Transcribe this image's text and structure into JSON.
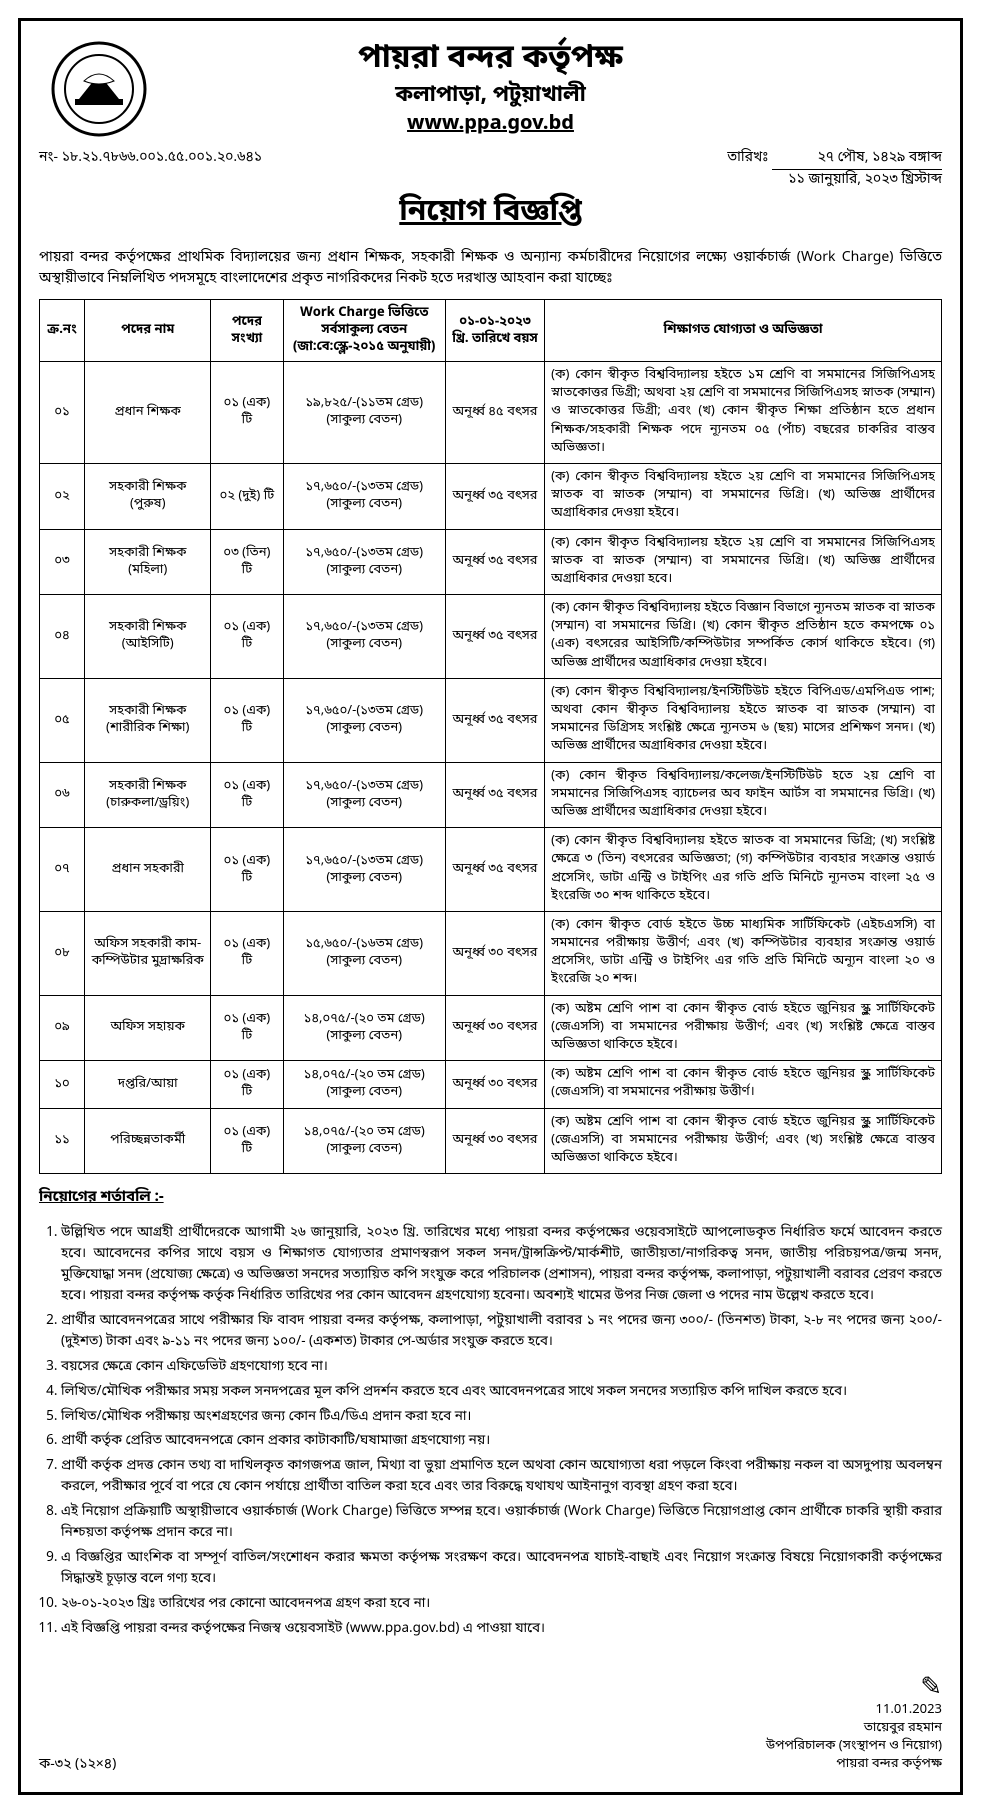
{
  "header": {
    "org_name": "পায়রা বন্দর কর্তৃপক্ষ",
    "org_address": "কলাপাড়া, পটুয়াখালী",
    "website": "www.ppa.gov.bd",
    "ref_no": "নং- ১৮.২১.৭৮৬৬.০০১.৫৫.০০১.২০.৬৪১",
    "date_label": "তারিখঃ",
    "date_bn": "২৭ পৌষ, ১৪২৯ বঙ্গাব্দ",
    "date_en": "১১ জানুয়ারি, ২০২৩ খ্রিস্টাব্দ",
    "notice_title": "নিয়োগ বিজ্ঞপ্তি"
  },
  "intro": "পায়রা বন্দর কর্তৃপক্ষের প্রাথমিক বিদ্যালয়ের জন্য প্রধান শিক্ষক, সহকারী শিক্ষক ও অন্যান্য কর্মচারীদের নিয়োগের লক্ষ্যে ওয়ার্কচার্জ (Work Charge) ভিত্তিতে অস্থায়ীভাবে নিম্নলিখিত পদসমূহে বাংলাদেশের প্রকৃত নাগরিকদের নিকট হতে দরখাস্ত আহবান করা যাচ্ছেঃ",
  "table": {
    "headers": {
      "sl": "ক্র.নং",
      "post": "পদের নাম",
      "count": "পদের সংখ্যা",
      "pay": "Work Charge ভিত্তিতে সর্বসাকুল্য বেতন (জা:বে:স্কেল-২০১৫ অনুযায়ী)",
      "age": "০১-০১-২০২৩ খ্রি. তারিখে বয়স",
      "qual": "শিক্ষাগত যোগ্যতা ও অভিজ্ঞতা"
    },
    "rows": [
      {
        "sl": "০১",
        "post": "প্রধান শিক্ষক",
        "count": "০১ (এক) টি",
        "pay": "১৯,৮২৫/-(১১তম গ্রেড) (সাকুল্য বেতন)",
        "age": "অনূর্ধ্ব ৪৫ বৎসর",
        "qual": "(ক) কোন স্বীকৃত বিশ্ববিদ্যালয় হইতে ১ম শ্রেণি বা সমমানের সিজিপিএসহ স্নাতকোত্তর ডিগ্রী; অথবা ২য় শ্রেণি বা সমমানের সিজিপিএসহ স্নাতক (সম্মান) ও স্নাতকোত্তর ডিগ্রী; এবং (খ) কোন স্বীকৃত শিক্ষা প্রতিষ্ঠান হতে প্রধান শিক্ষক/সহকারী শিক্ষক পদে ন্যূনতম ০৫ (পাঁচ) বছরের চাকরির বাস্তব অভিজ্ঞতা।"
      },
      {
        "sl": "০২",
        "post": "সহকারী শিক্ষক (পুরুষ)",
        "count": "০২ (দুই) টি",
        "pay": "১৭,৬৫০/-(১৩তম গ্রেড) (সাকুল্য বেতন)",
        "age": "অনূর্ধ্ব ৩৫ বৎসর",
        "qual": "(ক) কোন স্বীকৃত বিশ্ববিদ্যালয় হইতে ২য় শ্রেণি বা সমমানের সিজিপিএসহ স্নাতক বা স্নাতক (সম্মান) বা সমমানের ডিগ্রি। (খ) অভিজ্ঞ প্রার্থীদের অগ্রাধিকার দেওয়া হইবে।"
      },
      {
        "sl": "০৩",
        "post": "সহকারী শিক্ষক (মহিলা)",
        "count": "০৩ (তিন) টি",
        "pay": "১৭,৬৫০/-(১৩তম গ্রেড) (সাকুল্য বেতন)",
        "age": "অনূর্ধ্ব ৩৫ বৎসর",
        "qual": "(ক) কোন স্বীকৃত বিশ্ববিদ্যালয় হইতে ২য় শ্রেণি বা সমমানের সিজিপিএসহ স্নাতক বা স্নাতক (সম্মান) বা সমমানের ডিগ্রি। (খ) অভিজ্ঞ প্রার্থীদের অগ্রাধিকার দেওয়া হবে।"
      },
      {
        "sl": "০৪",
        "post": "সহকারী শিক্ষক (আইসিটি)",
        "count": "০১ (এক) টি",
        "pay": "১৭,৬৫০/-(১৩তম গ্রেড) (সাকুল্য বেতন)",
        "age": "অনূর্ধ্ব ৩৫ বৎসর",
        "qual": "(ক) কোন স্বীকৃত বিশ্ববিদ্যালয় হইতে বিজ্ঞান বিভাগে ন্যূনতম স্নাতক বা স্নাতক (সম্মান) বা সমমানের ডিগ্রি। (খ) কোন স্বীকৃত প্রতিষ্ঠান হতে কমপক্ষে ০১ (এক) বৎসরের আইসিটি/কম্পিউটার সম্পর্কিত কোর্স থাকিতে হইবে। (গ) অভিজ্ঞ প্রার্থীদের অগ্রাধিকার দেওয়া হইবে।"
      },
      {
        "sl": "০৫",
        "post": "সহকারী শিক্ষক (শারীরিক শিক্ষা)",
        "count": "০১ (এক) টি",
        "pay": "১৭,৬৫০/-(১৩তম গ্রেড) (সাকুল্য বেতন)",
        "age": "অনূর্ধ্ব ৩৫ বৎসর",
        "qual": "(ক) কোন স্বীকৃত বিশ্ববিদ্যালয়/ইনস্টিটিউট হইতে বিপিএড/এমপিএড পাশ; অথবা কোন স্বীকৃত বিশ্ববিদ্যালয় হইতে স্নাতক বা স্নাতক (সম্মান) বা সমমানের ডিগ্রিসহ সংশ্লিষ্ট ক্ষেত্রে ন্যূনতম ৬ (ছয়) মাসের প্রশিক্ষণ সনদ। (খ) অভিজ্ঞ প্রার্থীদের অগ্রাধিকার দেওয়া হইবে।"
      },
      {
        "sl": "০৬",
        "post": "সহকারী শিক্ষক (চারুকলা/ড্রয়িং)",
        "count": "০১ (এক) টি",
        "pay": "১৭,৬৫০/-(১৩তম গ্রেড) (সাকুল্য বেতন)",
        "age": "অনূর্ধ্ব ৩৫ বৎসর",
        "qual": "(ক) কোন স্বীকৃত বিশ্ববিদ্যালয়/কলেজ/ইনস্টিটিউট হতে ২য় শ্রেণি বা সমমানের সিজিপিএসহ ব্যাচেলর অব ফাইন আর্টস বা সমমানের ডিগ্রি। (খ) অভিজ্ঞ প্রার্থীদের অগ্রাধিকার দেওয়া হইবে।"
      },
      {
        "sl": "০৭",
        "post": "প্রধান সহকারী",
        "count": "০১ (এক) টি",
        "pay": "১৭,৬৫০/-(১৩তম গ্রেড) (সাকুল্য বেতন)",
        "age": "অনূর্ধ্ব ৩৫ বৎসর",
        "qual": "(ক) কোন স্বীকৃত বিশ্ববিদ্যালয় হইতে স্নাতক বা সমমানের ডিগ্রি; (খ) সংশ্লিষ্ট ক্ষেত্রে ৩ (তিন) বৎসরের অভিজ্ঞতা; (গ) কম্পিউটার ব্যবহার সংক্রান্ত ওয়ার্ড প্রসেসিং, ডাটা এন্ট্রি ও টাইপিং এর গতি প্রতি মিনিটে ন্যূনতম বাংলা ২৫ ও ইংরেজি ৩০ শব্দ থাকিতে হইবে।"
      },
      {
        "sl": "০৮",
        "post": "অফিস সহকারী কাম-কম্পিউটার মুদ্রাক্ষরিক",
        "count": "০১ (এক) টি",
        "pay": "১৫,৬৫০/-(১৬তম গ্রেড) (সাকুল্য বেতন)",
        "age": "অনূর্ধ্ব ৩০ বৎসর",
        "qual": "(ক) কোন স্বীকৃত বোর্ড হইতে উচ্চ মাধ্যমিক সার্টিফিকেট (এইচএসসি) বা সমমানের পরীক্ষায় উত্তীর্ণ; এবং (খ) কম্পিউটার ব্যবহার সংক্রান্ত ওয়ার্ড প্রসেসিং, ডাটা এন্ট্রি ও টাইপিং এর গতি প্রতি মিনিটে অন্যূন বাংলা ২০ ও ইংরেজি ২০ শব্দ।"
      },
      {
        "sl": "০৯",
        "post": "অফিস সহায়ক",
        "count": "০১ (এক) টি",
        "pay": "১৪,০৭৫/-(২০ তম গ্রেড) (সাকুল্য বেতন)",
        "age": "অনূর্ধ্ব ৩০ বৎসর",
        "qual": "(ক) অষ্টম শ্রেণি পাশ বা কোন স্বীকৃত বোর্ড হইতে জুনিয়র স্কুল সার্টিফিকেট (জেএসসি) বা সমমানের পরীক্ষায় উত্তীর্ণ; এবং (খ) সংশ্লিষ্ট ক্ষেত্রে বাস্তব অভিজ্ঞতা থাকিতে হইবে।"
      },
      {
        "sl": "১০",
        "post": "দপ্তরি/আয়া",
        "count": "০১ (এক) টি",
        "pay": "১৪,০৭৫/-(২০ তম গ্রেড) (সাকুল্য বেতন)",
        "age": "অনূর্ধ্ব ৩০ বৎসর",
        "qual": "(ক) অষ্টম শ্রেণি পাশ বা কোন স্বীকৃত বোর্ড হইতে জুনিয়র স্কুল সার্টিফিকেট (জেএসসি) বা সমমানের পরীক্ষায় উত্তীর্ণ।"
      },
      {
        "sl": "১১",
        "post": "পরিচ্ছন্নতাকর্মী",
        "count": "০১ (এক) টি",
        "pay": "১৪,০৭৫/-(২০ তম গ্রেড) (সাকুল্য বেতন)",
        "age": "অনূর্ধ্ব ৩০ বৎসর",
        "qual": "(ক) অষ্টম শ্রেণি পাশ বা কোন স্বীকৃত বোর্ড হইতে জুনিয়র স্কুল সার্টিফিকেট (জেএসসি) বা সমমানের পরীক্ষায় উত্তীর্ণ; এবং (খ) সংশ্লিষ্ট ক্ষেত্রে বাস্তব অভিজ্ঞতা থাকিতে হইবে।"
      }
    ]
  },
  "terms_heading": "নিয়োগের শর্তাবলি :-",
  "terms": [
    "উল্লিখিত পদে আগ্রহী প্রার্থীদেরকে আগামী ২৬ জানুয়ারি, ২০২৩ খ্রি. তারিখের মধ্যে পায়রা বন্দর কর্তৃপক্ষের ওয়েবসাইটে আপলোডকৃত নির্ধারিত ফর্মে আবেদন করতে হবে। আবেদনের কপির সাথে বয়স ও শিক্ষাগত যোগ্যতার প্রমাণস্বরূপ সকল সনদ/ট্রান্সক্রিপ্ট/মার্কশীট, জাতীয়তা/নাগরিকত্ব সনদ, জাতীয় পরিচয়পত্র/জন্ম সনদ, মুক্তিযোদ্ধা সনদ (প্রযোজ্য ক্ষেত্রে) ও অভিজ্ঞতা সনদের সত্যায়িত কপি সংযুক্ত করে পরিচালক (প্রশাসন), পায়রা বন্দর কর্তৃপক্ষ, কলাপাড়া, পটুয়াখালী বরাবর প্রেরণ করতে হবে। পায়রা বন্দর কর্তৃপক্ষ কর্তৃক নির্ধারিত তারিখের পর কোন আবেদন গ্রহণযোগ্য হবেনা। অবশ্যই খামের উপর নিজ জেলা ও পদের নাম উল্লেখ করতে হবে।",
    "প্রার্থীর আবেদনপত্রের সাথে পরীক্ষার ফি বাবদ পায়রা বন্দর কর্তৃপক্ষ, কলাপাড়া, পটুয়াখালী বরাবর ১ নং পদের জন্য ৩০০/- (তিনশত) টাকা, ২-৮ নং পদের জন্য ২০০/- (দুইশত) টাকা এবং ৯-১১ নং পদের জন্য ১০০/- (একশত) টাকার পে-অর্ডার সংযুক্ত করতে হবে।",
    "বয়সের ক্ষেত্রে কোন এফিডেভিট গ্রহণযোগ্য হবে না।",
    "লিখিত/মৌখিক পরীক্ষার সময় সকল সনদপত্রের মূল কপি প্রদর্শন করতে হবে এবং আবেদনপত্রের সাথে সকল সনদের সত্যায়িত কপি দাখিল করতে হবে।",
    "লিখিত/মৌখিক পরীক্ষায় অংশগ্রহণের জন্য কোন টিএ/ডিএ প্রদান করা হবে না।",
    "প্রার্থী কর্তৃক প্রেরিত আবেদনপত্রে কোন প্রকার কাটাকাটি/ঘষামাজা গ্রহণযোগ্য নয়।",
    "প্রার্থী কর্তৃক প্রদত্ত কোন তথ্য বা দাখিলকৃত কাগজপত্র জাল, মিথ্যা বা ভুয়া প্রমাণিত হলে অথবা কোন অযোগ্যতা ধরা পড়লে কিংবা পরীক্ষায় নকল বা অসদুপায় অবলম্বন করলে, পরীক্ষার পূর্বে বা পরে যে কোন পর্যায়ে প্রার্থীতা বাতিল করা হবে এবং তার বিরুদ্ধে যথাযথ আইনানুগ ব্যবস্থা গ্রহণ করা হবে।",
    "এই নিয়োগ প্রক্রিয়াটি অস্থায়ীভাবে ওয়ার্কচার্জ (Work Charge) ভিত্তিতে সম্পন্ন হবে। ওয়ার্কচার্জ (Work Charge) ভিত্তিতে নিয়োগপ্রাপ্ত কোন প্রার্থীকে চাকরি স্থায়ী করার নিশ্চয়তা কর্তৃপক্ষ প্রদান করে না।",
    "এ বিজ্ঞপ্তির আংশিক বা সম্পূর্ণ বাতিল/সংশোধন করার ক্ষমতা কর্তৃপক্ষ সংরক্ষণ করে। আবেদনপত্র যাচাই-বাছাই এবং নিয়োগ সংক্রান্ত বিষয়ে নিয়োগকারী কর্তৃপক্ষের সিদ্ধান্তই চূড়ান্ত বলে গণ্য হবে।",
    "২৬-০১-২০২৩ খ্রিঃ তারিখের পর কোনো আবেদনপত্র গ্রহণ করা হবে না।",
    "এই বিজ্ঞপ্তি পায়রা বন্দর কর্তৃপক্ষের নিজস্ব ওয়েবসাইট (www.ppa.gov.bd) এ পাওয়া যাবে।"
  ],
  "signature": {
    "scribble": "Signature",
    "date": "11.01.2023",
    "name": "তায়েবুর রহমান",
    "desig": "উপপরিচালক (সংস্থাপন ও নিয়োগ)",
    "org": "পায়রা বন্দর কর্তৃপক্ষ"
  },
  "footer_left": "ক-৩২ (১২×৪)"
}
